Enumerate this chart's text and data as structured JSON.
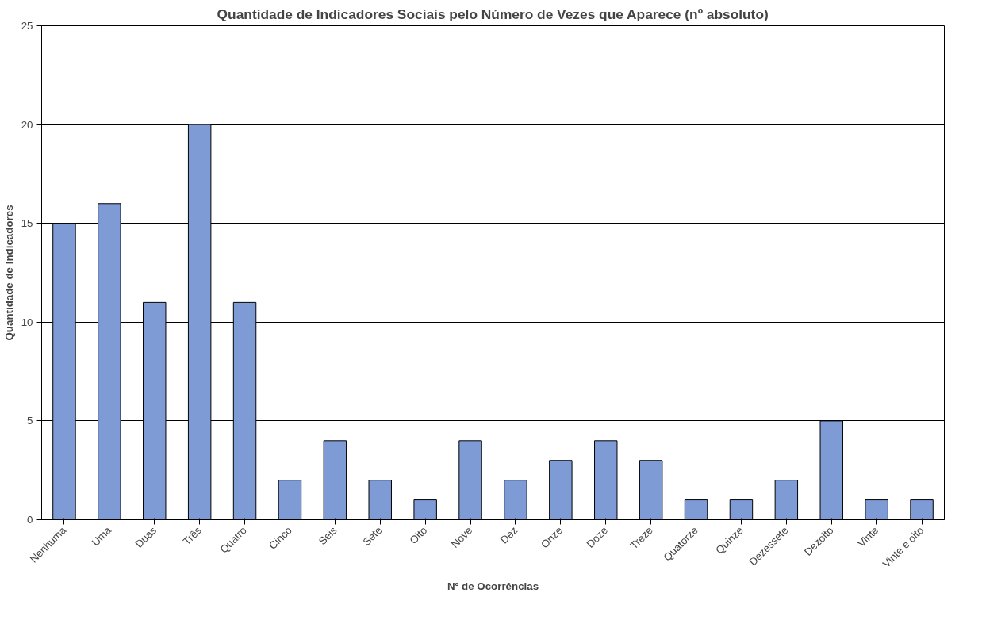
{
  "chart_data": {
    "type": "bar",
    "title": "Quantidade de Indicadores Sociais pelo Número de Vezes que Aparece (nº absoluto)",
    "xlabel": "Nº de Ocorrências",
    "ylabel": "Quantidade de Indicadores",
    "categories": [
      "Nenhuma",
      "Uma",
      "Duas",
      "Três",
      "Quatro",
      "Cinco",
      "Seis",
      "Sete",
      "Oito",
      "Nove",
      "Dez",
      "Onze",
      "Doze",
      "Treze",
      "Quatorze",
      "Quinze",
      "Dezessete",
      "Dezoito",
      "Vinte",
      "Vinte e oito"
    ],
    "values": [
      15,
      16,
      11,
      20,
      11,
      2,
      4,
      2,
      1,
      4,
      2,
      3,
      4,
      3,
      1,
      1,
      2,
      5,
      1,
      1
    ],
    "color": "#7e9bd6",
    "ylim": [
      0,
      25
    ],
    "yticks": [
      0,
      5,
      10,
      15,
      20,
      25
    ],
    "grid": "y"
  }
}
